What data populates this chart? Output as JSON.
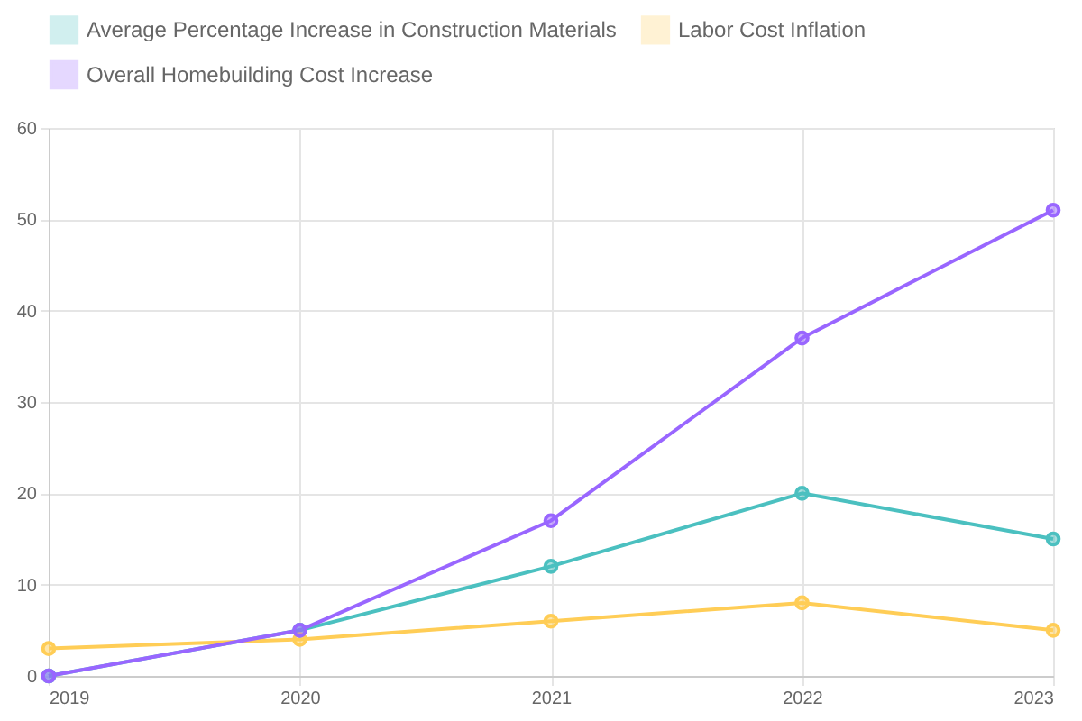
{
  "chart_data": {
    "type": "line",
    "categories": [
      "2019",
      "2020",
      "2021",
      "2022",
      "2023"
    ],
    "series": [
      {
        "name": "Average Percentage Increase in Construction Materials",
        "color": "#4bc0c0",
        "values": [
          0,
          5,
          12,
          20,
          15
        ]
      },
      {
        "name": "Labor Cost Inflation",
        "color": "#ffcd56",
        "values": [
          3,
          4,
          6,
          8,
          5
        ]
      },
      {
        "name": "Overall Homebuilding Cost Increase",
        "color": "#9966ff",
        "values": [
          0,
          5,
          17,
          37,
          51
        ]
      }
    ],
    "ylim": [
      0,
      60
    ],
    "yticks": [
      0,
      10,
      20,
      30,
      40,
      50,
      60
    ],
    "grid": true,
    "legend": "top",
    "marker": "circle",
    "line_style": "solid"
  }
}
